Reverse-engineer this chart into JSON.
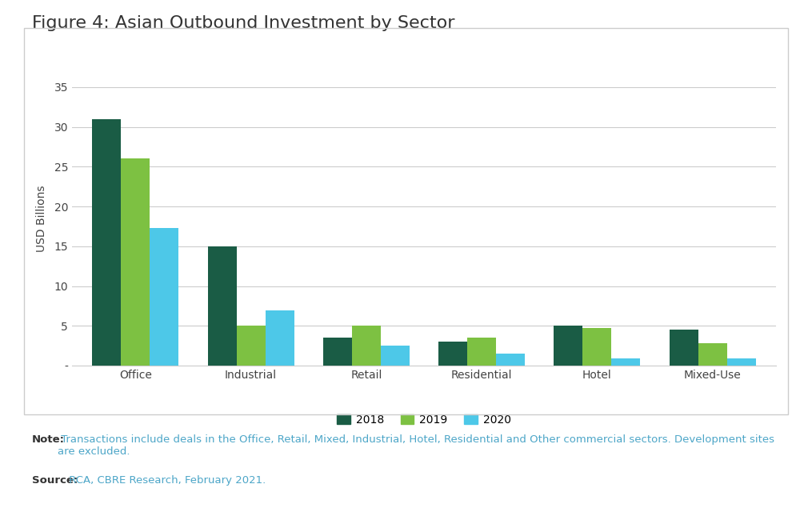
{
  "title": "Figure 4: Asian Outbound Investment by Sector",
  "ylabel": "USD Billions",
  "categories": [
    "Office",
    "Industrial",
    "Retail",
    "Residential",
    "Hotel",
    "Mixed-Use"
  ],
  "series": {
    "2018": [
      31,
      15,
      3.5,
      3,
      5,
      4.5
    ],
    "2019": [
      26,
      5,
      5,
      3.5,
      4.7,
      2.8
    ],
    "2020": [
      17.3,
      7,
      2.5,
      1.5,
      0.9,
      0.9
    ]
  },
  "colors": {
    "2018": "#1a5c45",
    "2019": "#7dc142",
    "2020": "#4dc8e8"
  },
  "ylim": [
    0,
    37
  ],
  "yticks": [
    0,
    5,
    10,
    15,
    20,
    25,
    30,
    35
  ],
  "ytick_labels": [
    "-",
    "5",
    "10",
    "15",
    "20",
    "25",
    "30",
    "35"
  ],
  "legend_labels": [
    "2018",
    "2019",
    "2020"
  ],
  "note_bold": "Note:",
  "note_text": " Transactions include deals in the Office, Retail, Mixed, Industrial, Hotel, Residential and Other commercial sectors. Development sites\nare excluded.",
  "source_bold": "Source:",
  "source_text": " RCA, CBRE Research, February 2021.",
  "note_color": "#4da6c8",
  "background_color": "#ffffff",
  "plot_background": "#ffffff",
  "outer_background": "#ffffff",
  "bar_width": 0.25,
  "title_fontsize": 16,
  "axis_fontsize": 10,
  "legend_fontsize": 10,
  "note_fontsize": 9.5,
  "grid_color": "#cccccc",
  "border_color": "#cccccc"
}
